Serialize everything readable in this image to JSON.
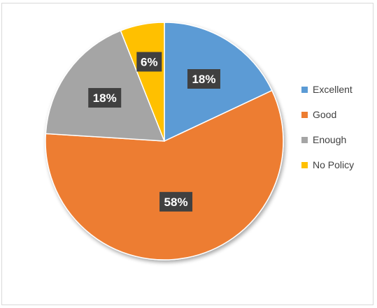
{
  "chart_data": {
    "type": "pie",
    "categories": [
      "Excellent",
      "Good",
      "Enough",
      "No Policy"
    ],
    "values": [
      18,
      58,
      18,
      6
    ],
    "labels": [
      "18%",
      "58%",
      "18%",
      "6%"
    ],
    "colors": [
      "#5b9bd5",
      "#ed7d31",
      "#a5a5a5",
      "#ffc000"
    ],
    "legend_position": "right",
    "start_angle": "top",
    "direction": "clockwise"
  }
}
